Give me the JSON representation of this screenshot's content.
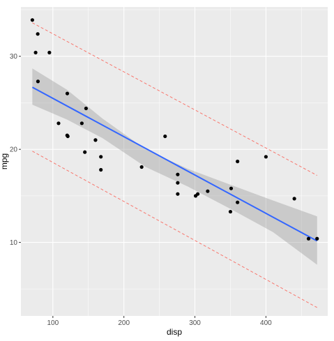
{
  "chart_data": {
    "type": "scatter",
    "title": "",
    "xlabel": "disp",
    "ylabel": "mpg",
    "xlim": [
      55,
      487
    ],
    "ylim": [
      2.1,
      35.3
    ],
    "x_ticks": [
      100,
      200,
      300,
      400
    ],
    "y_ticks": [
      10,
      20,
      30
    ],
    "x_tick_labels": [
      "100",
      "200",
      "300",
      "400"
    ],
    "y_tick_labels": [
      "10",
      "20",
      "30"
    ],
    "grid": true,
    "legend": "none",
    "colors": {
      "panel": "#ebebeb",
      "grid": "#ffffff",
      "points": "#000000",
      "fit_line": "#3366ff",
      "confidence_band": "#999999",
      "prediction_lines": "#f8766d"
    },
    "points": [
      {
        "x": 160,
        "y": 21.0
      },
      {
        "x": 160,
        "y": 21.0
      },
      {
        "x": 108,
        "y": 22.8
      },
      {
        "x": 258,
        "y": 21.4
      },
      {
        "x": 360,
        "y": 18.7
      },
      {
        "x": 225,
        "y": 18.1
      },
      {
        "x": 360,
        "y": 14.3
      },
      {
        "x": 146.7,
        "y": 24.4
      },
      {
        "x": 140.8,
        "y": 22.8
      },
      {
        "x": 167.6,
        "y": 19.2
      },
      {
        "x": 167.6,
        "y": 17.8
      },
      {
        "x": 275.8,
        "y": 16.4
      },
      {
        "x": 275.8,
        "y": 17.3
      },
      {
        "x": 275.8,
        "y": 15.2
      },
      {
        "x": 472,
        "y": 10.4
      },
      {
        "x": 460,
        "y": 10.4
      },
      {
        "x": 440,
        "y": 14.7
      },
      {
        "x": 78.7,
        "y": 32.4
      },
      {
        "x": 75.7,
        "y": 30.4
      },
      {
        "x": 71.1,
        "y": 33.9
      },
      {
        "x": 120.1,
        "y": 21.5
      },
      {
        "x": 318,
        "y": 15.5
      },
      {
        "x": 304,
        "y": 15.2
      },
      {
        "x": 350,
        "y": 13.3
      },
      {
        "x": 400,
        "y": 19.2
      },
      {
        "x": 79,
        "y": 27.3
      },
      {
        "x": 120.3,
        "y": 26.0
      },
      {
        "x": 95.1,
        "y": 30.4
      },
      {
        "x": 351,
        "y": 15.8
      },
      {
        "x": 145,
        "y": 19.7
      },
      {
        "x": 301,
        "y": 15.0
      },
      {
        "x": 121,
        "y": 21.4
      }
    ],
    "fit": {
      "intercept": 29.6,
      "slope": -0.0412
    },
    "confidence_band": {
      "x": [
        71.1,
        120,
        170,
        230.7,
        290,
        350,
        410,
        472
      ],
      "lower": [
        24.8,
        23.2,
        21.2,
        18.1,
        16.0,
        13.6,
        11.1,
        7.6
      ],
      "upper": [
        28.7,
        26.4,
        23.3,
        20.0,
        17.9,
        16.2,
        14.5,
        12.8
      ]
    },
    "prediction_interval": {
      "x": [
        71.1,
        472
      ],
      "lower": [
        19.8,
        3.0
      ],
      "upper": [
        33.6,
        17.2
      ]
    }
  }
}
